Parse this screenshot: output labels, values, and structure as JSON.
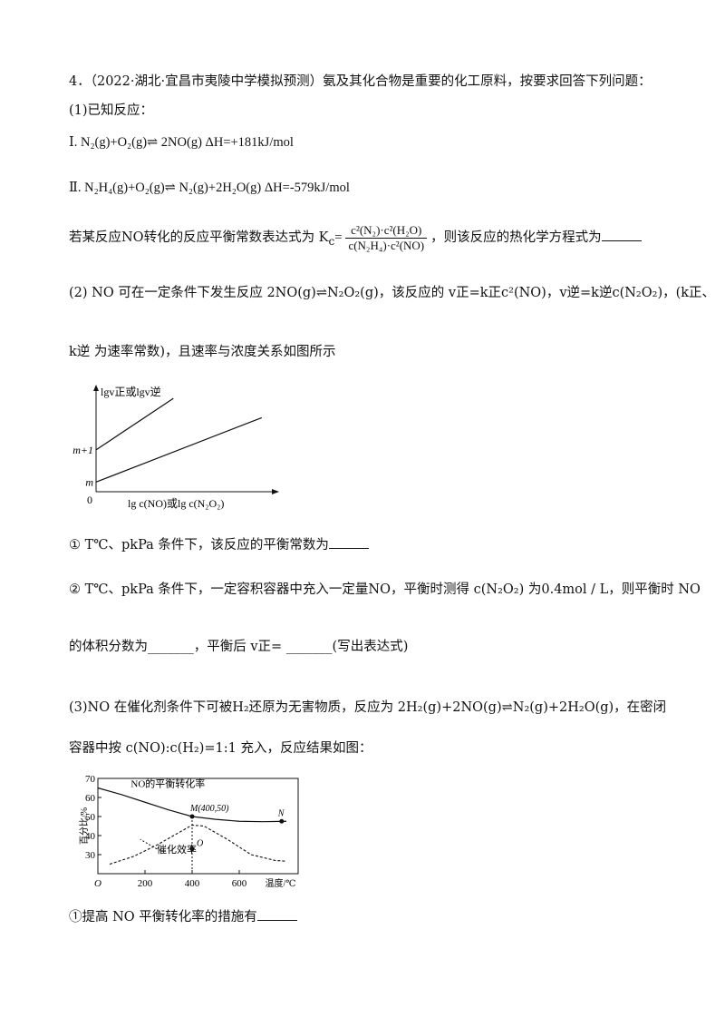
{
  "question": {
    "title": "4．（2022·湖北·宜昌市夷陵中学模拟预测）氨及其化合物是重要的化工原料，按要求回答下列问题：",
    "part1_intro": "(1)已知反应：",
    "rxn1": "Ⅰ. N₂(g)+O₂(g)⇌ 2NO(g) ΔH=+181kJ/mol",
    "rxn2": "Ⅱ. N₂H₄(g)+O₂(g)⇌ N₂(g)+2H₂O(g) ΔH=-579kJ/mol",
    "part1_q_pre": "若某反应NO转化的反应平衡常数表达式为 K",
    "part1_k_sub": "c",
    "part1_k_num": "c²(N₂)·c²(H₂O)",
    "part1_k_den": "c(N₂H₄)·c²(NO)",
    "part1_q_post": "，则该反应的热化学方程式为",
    "part2_line1": "(2) NO 可在一定条件下发生反应 2NO(g)⇌N₂O₂(g)，该反应的 v正=k正c²(NO)，v逆=k逆c(N₂O₂)，(k正、",
    "part2_line2": "k逆 为速率常数)，且速率与浓度关系如图所示",
    "q2_1_pre": "① T℃、pkPa 条件下，该反应的平衡常数为",
    "q2_2_pre": "② T℃、pkPa 条件下，一定容积容器中充入一定量NO，平衡时测得 c(N₂O₂) 为0.4mol / L，则平衡时 NO",
    "q2_2_line2": "的体积分数为_______，平衡后 v正= _______(写出表达式)",
    "part3_line1": "(3)NO 在催化剂条件下可被H₂还原为无害物质，反应为 2H₂(g)+2NO(g)⇌N₂(g)+2H₂O(g)，在密闭",
    "part3_line2": "容器中按 c(NO):c(H₂)=1:1 充入，反应结果如图：",
    "q3_1": "①提高 NO 平衡转化率的措施有"
  },
  "chart_data": [
    {
      "type": "line",
      "ylabel": "lgv正或lgv逆",
      "xlabel": "lg c(NO)或lg c(N₂O₂)",
      "ytick_labels": [
        "m+1",
        "m"
      ],
      "origin_label": "0",
      "series": [
        {
          "x": [
            0,
            1.4
          ],
          "y": [
            1,
            2.6
          ]
        },
        {
          "x": [
            0,
            3.0
          ],
          "y": [
            0,
            2.0
          ]
        }
      ],
      "xlim": [
        0,
        3.2
      ],
      "ylim": [
        -0.3,
        2.8
      ]
    },
    {
      "type": "line",
      "ylabel": "百分比/%",
      "xlabel": "温度/℃",
      "x_ticks": [
        0,
        200,
        400,
        600
      ],
      "x_tick_labels": [
        "O",
        "200",
        "400",
        "600"
      ],
      "y_ticks": [
        30,
        40,
        50,
        60,
        70
      ],
      "ylim": [
        20,
        70
      ],
      "xlim": [
        0,
        850
      ],
      "series": [
        {
          "name": "NO的平衡转化率",
          "x": [
            0,
            100,
            200,
            300,
            400,
            500,
            600,
            700,
            800
          ],
          "y": [
            65,
            61.5,
            57.5,
            53.5,
            50,
            48.5,
            47.5,
            47.3,
            47.5
          ]
        },
        {
          "name": "催化效率",
          "x": [
            50,
            150,
            250,
            350,
            400,
            450,
            550,
            650,
            750,
            800
          ],
          "y": [
            25,
            29,
            35,
            42,
            45.5,
            45,
            38,
            30,
            27,
            26.5
          ]
        }
      ],
      "points": [
        {
          "label": "M(400,50)",
          "x": 400,
          "y": 50
        },
        {
          "label": "N",
          "x": 780,
          "y": 47.5
        },
        {
          "label": "O",
          "x": 400,
          "y": 33
        }
      ]
    }
  ]
}
